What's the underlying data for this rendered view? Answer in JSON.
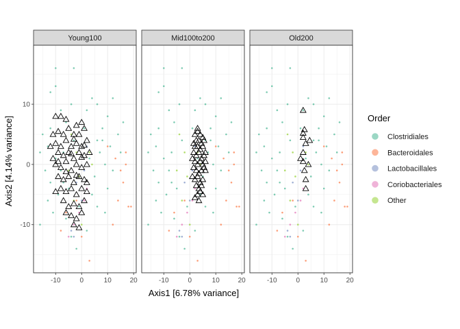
{
  "chart_data": {
    "type": "scatter",
    "xlabel": "Axis1 [6.78% variance]",
    "ylabel": "Axis2 [4.14% variance]",
    "xlim": [
      -18.5,
      21
    ],
    "ylim": [
      -18,
      19.8
    ],
    "x_ticks": [
      -10,
      0,
      10,
      20
    ],
    "x_tick_labels": [
      "-10",
      "0",
      "10",
      "20"
    ],
    "y_ticks": [
      -10,
      0,
      10
    ],
    "y_tick_labels": [
      "-10",
      "0",
      "10"
    ],
    "grid": true,
    "legend": {
      "title": "Order",
      "position": "right",
      "entries": [
        {
          "name": "Clostridiales",
          "color": "#66C2A5"
        },
        {
          "name": "Bacteroidales",
          "color": "#FC8D62"
        },
        {
          "name": "Lactobacillales",
          "color": "#8DA0CB"
        },
        {
          "name": "Coriobacteriales",
          "color": "#E78AC3"
        },
        {
          "name": "Other",
          "color": "#A6D854"
        }
      ]
    },
    "background_points": [
      [
        -10,
        16,
        "Clostridiales"
      ],
      [
        -3,
        16,
        "Clostridiales"
      ],
      [
        -10,
        13,
        "Clostridiales"
      ],
      [
        -12,
        12,
        "Clostridiales"
      ],
      [
        4,
        11,
        "Clostridiales"
      ],
      [
        12,
        11,
        "Clostridiales"
      ],
      [
        -8,
        9,
        "Clostridiales"
      ],
      [
        10,
        8,
        "Clostridiales"
      ],
      [
        16,
        7,
        "Clostridiales"
      ],
      [
        -15,
        5,
        "Clostridiales"
      ],
      [
        -12,
        6,
        "Clostridiales"
      ],
      [
        8,
        6,
        "Clostridiales"
      ],
      [
        14,
        5,
        "Clostridiales"
      ],
      [
        -16,
        2,
        "Clostridiales"
      ],
      [
        6,
        4,
        "Clostridiales"
      ],
      [
        11,
        3,
        "Clostridiales"
      ],
      [
        -14,
        -1,
        "Clostridiales"
      ],
      [
        -7,
        2,
        "Clostridiales"
      ],
      [
        3,
        1,
        "Clostridiales"
      ],
      [
        9,
        0,
        "Clostridiales"
      ],
      [
        -12,
        -3,
        "Clostridiales"
      ],
      [
        -9,
        -5,
        "Clostridiales"
      ],
      [
        -5,
        -4,
        "Clostridiales"
      ],
      [
        5,
        -2,
        "Clostridiales"
      ],
      [
        10,
        -4,
        "Clostridiales"
      ],
      [
        -11,
        -8,
        "Clostridiales"
      ],
      [
        -6,
        -9,
        "Clostridiales"
      ],
      [
        6,
        -7,
        "Clostridiales"
      ],
      [
        -16,
        -10,
        "Clostridiales"
      ],
      [
        -4,
        -12,
        "Clostridiales"
      ],
      [
        2,
        -11,
        "Clostridiales"
      ],
      [
        -2,
        -14,
        "Clostridiales"
      ],
      [
        -13,
        3,
        "Clostridiales"
      ],
      [
        -8,
        -1,
        "Clostridiales"
      ],
      [
        7,
        2,
        "Clostridiales"
      ],
      [
        12,
        -1,
        "Clostridiales"
      ],
      [
        -3,
        4,
        "Clostridiales"
      ],
      [
        1,
        6,
        "Clostridiales"
      ],
      [
        -1,
        -7,
        "Clostridiales"
      ],
      [
        4,
        -5,
        "Clostridiales"
      ],
      [
        -10,
        1,
        "Clostridiales"
      ],
      [
        8,
        4,
        "Clostridiales"
      ],
      [
        -6,
        7,
        "Clostridiales"
      ],
      [
        2,
        9,
        "Clostridiales"
      ],
      [
        -13,
        -6,
        "Clostridiales"
      ],
      [
        6,
        10,
        "Clostridiales"
      ],
      [
        -4,
        10,
        "Clostridiales"
      ],
      [
        15,
        2,
        "Clostridiales"
      ],
      [
        -7,
        -3,
        "Clostridiales"
      ],
      [
        9,
        -8,
        "Clostridiales"
      ],
      [
        13,
        1,
        "Bacteroidales"
      ],
      [
        15,
        -1,
        "Bacteroidales"
      ],
      [
        17,
        0,
        "Bacteroidales"
      ],
      [
        16,
        -3,
        "Bacteroidales"
      ],
      [
        14,
        -6,
        "Bacteroidales"
      ],
      [
        18,
        -7,
        "Bacteroidales"
      ],
      [
        19,
        -7,
        "Bacteroidales"
      ],
      [
        12,
        -10,
        "Bacteroidales"
      ],
      [
        3,
        -16,
        "Bacteroidales"
      ],
      [
        -6,
        -8,
        "Bacteroidales"
      ],
      [
        -8,
        -11,
        "Bacteroidales"
      ],
      [
        10,
        3,
        "Bacteroidales"
      ],
      [
        17,
        2,
        "Bacteroidales"
      ],
      [
        0,
        -12,
        "Bacteroidales"
      ],
      [
        -2,
        -6,
        "Bacteroidales"
      ],
      [
        0,
        -6,
        "Lactobacillales"
      ],
      [
        -2,
        -3,
        "Lactobacillales"
      ],
      [
        -4,
        -11,
        "Lactobacillales"
      ],
      [
        2,
        3,
        "Lactobacillales"
      ],
      [
        -3,
        -12,
        "Lactobacillales"
      ],
      [
        1,
        -1,
        "Lactobacillales"
      ],
      [
        -1,
        -8,
        "Coriobacteriales"
      ],
      [
        1,
        -6,
        "Coriobacteriales"
      ],
      [
        -3,
        -10,
        "Coriobacteriales"
      ],
      [
        2,
        -4,
        "Coriobacteriales"
      ],
      [
        -5,
        -12,
        "Coriobacteriales"
      ],
      [
        -4,
        5,
        "Other"
      ],
      [
        -1,
        -2,
        "Other"
      ],
      [
        -3,
        -6,
        "Other"
      ],
      [
        3,
        2,
        "Other"
      ],
      [
        0,
        -10,
        "Other"
      ],
      [
        -2,
        2,
        "Other"
      ],
      [
        4,
        0,
        "Other"
      ],
      [
        -5,
        -1,
        "Other"
      ]
    ],
    "panels": [
      {
        "name": "Young100",
        "triangles": [
          [
            -10,
            8
          ],
          [
            -8,
            8
          ],
          [
            -6,
            7.5
          ],
          [
            -2,
            6.5
          ],
          [
            0,
            7
          ],
          [
            -11,
            5
          ],
          [
            -9,
            5.5
          ],
          [
            -7,
            5
          ],
          [
            -5,
            6
          ],
          [
            -3,
            5
          ],
          [
            -1,
            5
          ],
          [
            1,
            6
          ],
          [
            -12,
            3
          ],
          [
            -10,
            3.5
          ],
          [
            -8,
            3
          ],
          [
            -6,
            4
          ],
          [
            -4,
            3
          ],
          [
            -2,
            3.5
          ],
          [
            0,
            3
          ],
          [
            2,
            4
          ],
          [
            -11,
            1
          ],
          [
            -9,
            2
          ],
          [
            -7,
            1.5
          ],
          [
            -5,
            2
          ],
          [
            -3,
            1
          ],
          [
            -1,
            2
          ],
          [
            1,
            1.5
          ],
          [
            3,
            2
          ],
          [
            -10,
            0
          ],
          [
            -8,
            -0.5
          ],
          [
            -6,
            0.5
          ],
          [
            -4,
            -1
          ],
          [
            -2,
            0
          ],
          [
            0,
            -0.5
          ],
          [
            2,
            0
          ],
          [
            -9,
            -2
          ],
          [
            -7,
            -2.5
          ],
          [
            -5,
            -2
          ],
          [
            -3,
            -3
          ],
          [
            -1,
            -2
          ],
          [
            1,
            -2.5
          ],
          [
            -8,
            -4
          ],
          [
            -6,
            -4.5
          ],
          [
            -4,
            -4
          ],
          [
            -2,
            -5
          ],
          [
            0,
            -4
          ],
          [
            2,
            -4.5
          ],
          [
            -7,
            -6
          ],
          [
            -5,
            -7
          ],
          [
            -3,
            -6.5
          ],
          [
            -1,
            -7
          ],
          [
            1,
            -6
          ],
          [
            -6,
            -8
          ],
          [
            -4,
            -8.5
          ],
          [
            -2,
            -9
          ],
          [
            0,
            -8
          ],
          [
            -3,
            -10
          ],
          [
            -1,
            -10.5
          ],
          [
            -9,
            0.5
          ],
          [
            -3,
            4.2
          ],
          [
            1,
            3.2
          ],
          [
            -4,
            1.8
          ],
          [
            -6,
            -1.2
          ],
          [
            0,
            1.2
          ],
          [
            -2,
            -1.8
          ],
          [
            -10,
            -4.5
          ],
          [
            2,
            -3
          ]
        ]
      },
      {
        "name": "Mid100to200",
        "triangles": [
          [
            2,
            5
          ],
          [
            3,
            5.5
          ],
          [
            4,
            5
          ],
          [
            5,
            4.5
          ],
          [
            2.5,
            4
          ],
          [
            3.5,
            4
          ],
          [
            4.5,
            3.5
          ],
          [
            2,
            3
          ],
          [
            3,
            3
          ],
          [
            4,
            2.5
          ],
          [
            5,
            3
          ],
          [
            6,
            2
          ],
          [
            1.5,
            2
          ],
          [
            2.5,
            1.5
          ],
          [
            3.5,
            2
          ],
          [
            4.5,
            1
          ],
          [
            5.5,
            1.5
          ],
          [
            1,
            1
          ],
          [
            2,
            0.5
          ],
          [
            3,
            0
          ],
          [
            4,
            0.5
          ],
          [
            5,
            0
          ],
          [
            6,
            0.5
          ],
          [
            1.5,
            -0.5
          ],
          [
            2.5,
            -1
          ],
          [
            3.5,
            -1.5
          ],
          [
            4.5,
            -1
          ],
          [
            5.5,
            -0.5
          ],
          [
            1,
            -2
          ],
          [
            2,
            -2.5
          ],
          [
            3,
            -2
          ],
          [
            4,
            -3
          ],
          [
            5,
            -2.5
          ],
          [
            2.5,
            -3.5
          ],
          [
            3.5,
            -4
          ],
          [
            4.5,
            -3.5
          ],
          [
            3,
            -5
          ],
          [
            4,
            -4.5
          ],
          [
            2,
            -5.5
          ],
          [
            3.5,
            -6
          ],
          [
            5,
            -5
          ],
          [
            6,
            -1
          ],
          [
            1.5,
            3.5
          ],
          [
            5.5,
            4
          ],
          [
            3,
            6
          ]
        ]
      },
      {
        "name": "Old200",
        "triangles": [
          [
            2,
            9
          ],
          [
            2.5,
            5.8
          ],
          [
            2,
            5.2
          ],
          [
            2,
            4.5
          ],
          [
            4.5,
            4
          ],
          [
            3,
            3.5
          ],
          [
            2,
            2
          ],
          [
            1,
            1
          ],
          [
            2,
            0.5
          ],
          [
            4,
            0
          ],
          [
            2.5,
            -1
          ],
          [
            3,
            -2.5
          ],
          [
            3,
            -4
          ]
        ]
      }
    ]
  }
}
